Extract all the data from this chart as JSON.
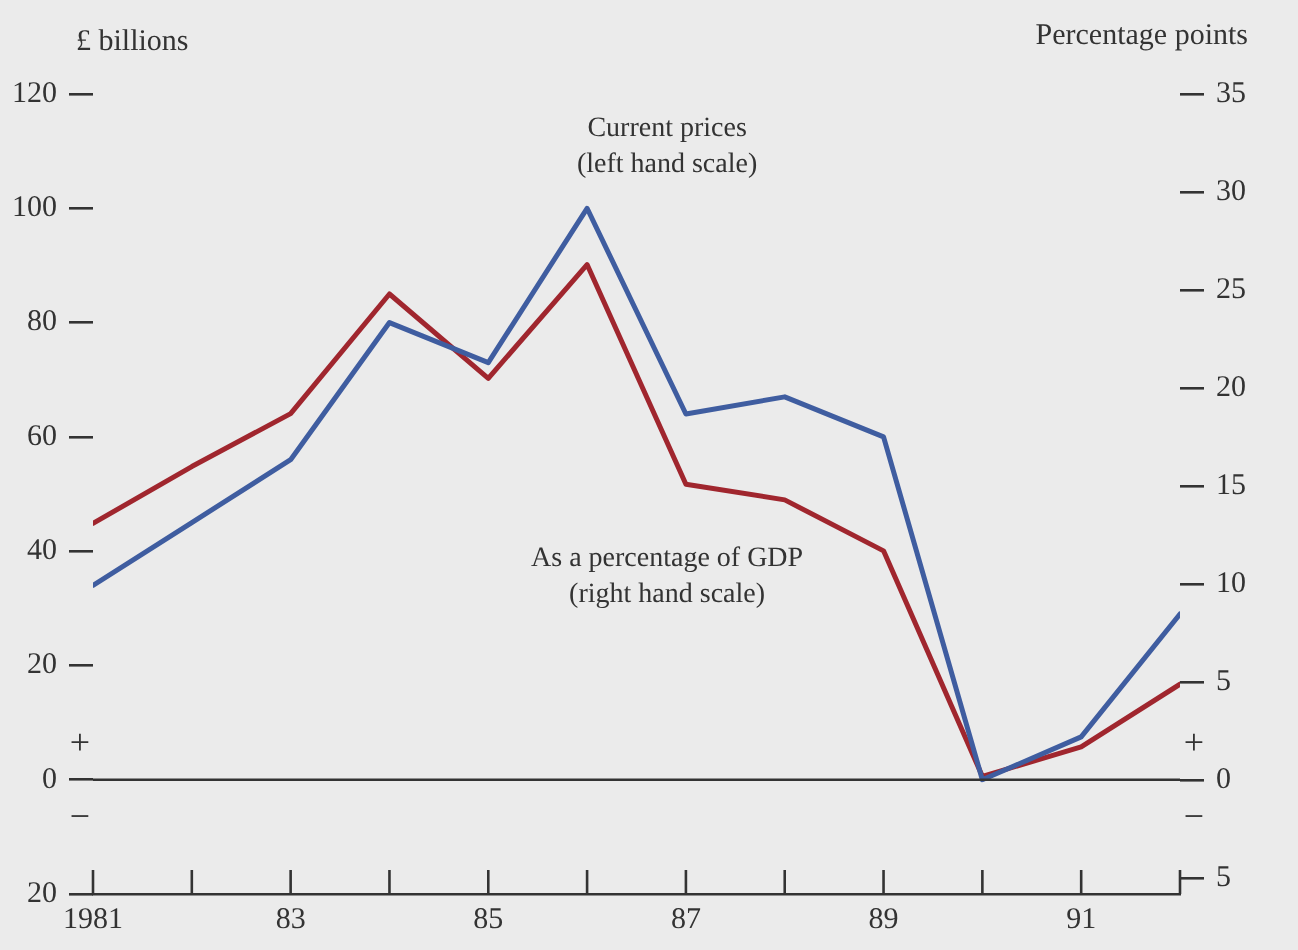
{
  "chart_data": {
    "type": "line",
    "ylabel": "£ billions",
    "y2label": "Percentage points",
    "x": [
      1981,
      1982,
      1983,
      1984,
      1985,
      1986,
      1987,
      1988,
      1989,
      1990,
      1991,
      1992
    ],
    "series": [
      {
        "name": "Current prices (left hand scale)",
        "color": "#3f5da0",
        "values": [
          34,
          45,
          56,
          80,
          73,
          100,
          64,
          67,
          60,
          0,
          7.5,
          29
        ]
      },
      {
        "name": "As a percentage of GDP (right hand scale)",
        "color": "#a0262e",
        "axis": "y2",
        "values": [
          13.1,
          16,
          18.7,
          24.8,
          20.5,
          26.3,
          15.1,
          14.3,
          11.7,
          0.2,
          1.7,
          4.9
        ]
      }
    ],
    "xlim": [
      1981,
      1992
    ],
    "xticks": [
      {
        "value": 1981,
        "label": "1981"
      },
      {
        "value": 1982,
        "label": null
      },
      {
        "value": 1983,
        "label": "83"
      },
      {
        "value": 1984,
        "label": null
      },
      {
        "value": 1985,
        "label": "85"
      },
      {
        "value": 1986,
        "label": null
      },
      {
        "value": 1987,
        "label": "87"
      },
      {
        "value": 1988,
        "label": null
      },
      {
        "value": 1989,
        "label": "89"
      },
      {
        "value": 1990,
        "label": null
      },
      {
        "value": 1991,
        "label": "91"
      },
      {
        "value": 1992,
        "label": null
      }
    ],
    "ylim": [
      -20,
      120
    ],
    "yticks": [
      {
        "value": -20,
        "label": "20"
      },
      0,
      20,
      40,
      60,
      80,
      100,
      120
    ],
    "y2lim": [
      -5.8,
      35
    ],
    "y2ticks": [
      {
        "value": -5,
        "label": "5"
      },
      0,
      5,
      10,
      15,
      20,
      25,
      30,
      35
    ],
    "ref_lines": [
      {
        "axis": "y",
        "value": 0,
        "color": "#333333"
      }
    ],
    "annotations": [
      "+",
      "−"
    ],
    "grid": false,
    "legend": false,
    "marker": "none",
    "line_style": "solid"
  }
}
